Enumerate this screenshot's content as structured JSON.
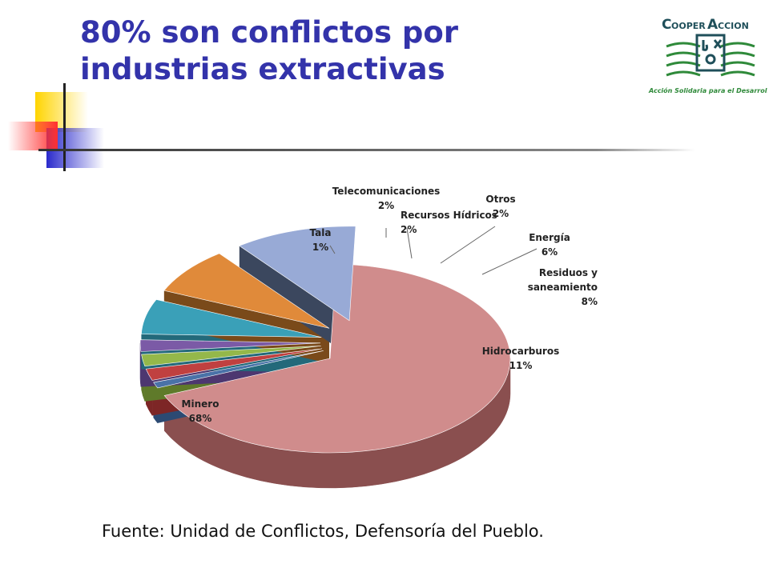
{
  "slide": {
    "title_line1": "80% son conflictos por",
    "title_line2": "industrias extractivas",
    "source": "Fuente: Unidad de Conflictos, Defensoría del Pueblo."
  },
  "logo": {
    "brand": "COOPERACCION",
    "tagline": "Acción Solidaria para el Desarrollo"
  },
  "chart_data": {
    "type": "pie",
    "style": "3d-exploded",
    "slices": [
      {
        "name": "Minero",
        "value": 68,
        "label": "68%",
        "color": "#d08c8c",
        "side": "#8a4f4f"
      },
      {
        "name": "Tala",
        "value": 1,
        "label": "1%",
        "color": "#4a72a8",
        "side": "#2c4a73"
      },
      {
        "name": "Telecomunicaciones",
        "value": 2,
        "label": "2%",
        "color": "#c04040",
        "side": "#7d2626"
      },
      {
        "name": "Recursos Hídricos",
        "value": 2,
        "label": "2%",
        "color": "#94b84a",
        "side": "#5f7a2a"
      },
      {
        "name": "Otros",
        "value": 2,
        "label": "2%",
        "color": "#7b5aa6",
        "side": "#4d3770"
      },
      {
        "name": "Energía",
        "value": 6,
        "label": "6%",
        "color": "#3aa0b8",
        "side": "#23697a"
      },
      {
        "name": "Residuos y saneamiento",
        "value": 8,
        "label": "8%",
        "color": "#e08a3a",
        "side": "#7a4a1a"
      },
      {
        "name": "Hidrocarburos",
        "value": 11,
        "label": "11%",
        "color": "#98aad6",
        "side": "#3b475e"
      }
    ]
  }
}
